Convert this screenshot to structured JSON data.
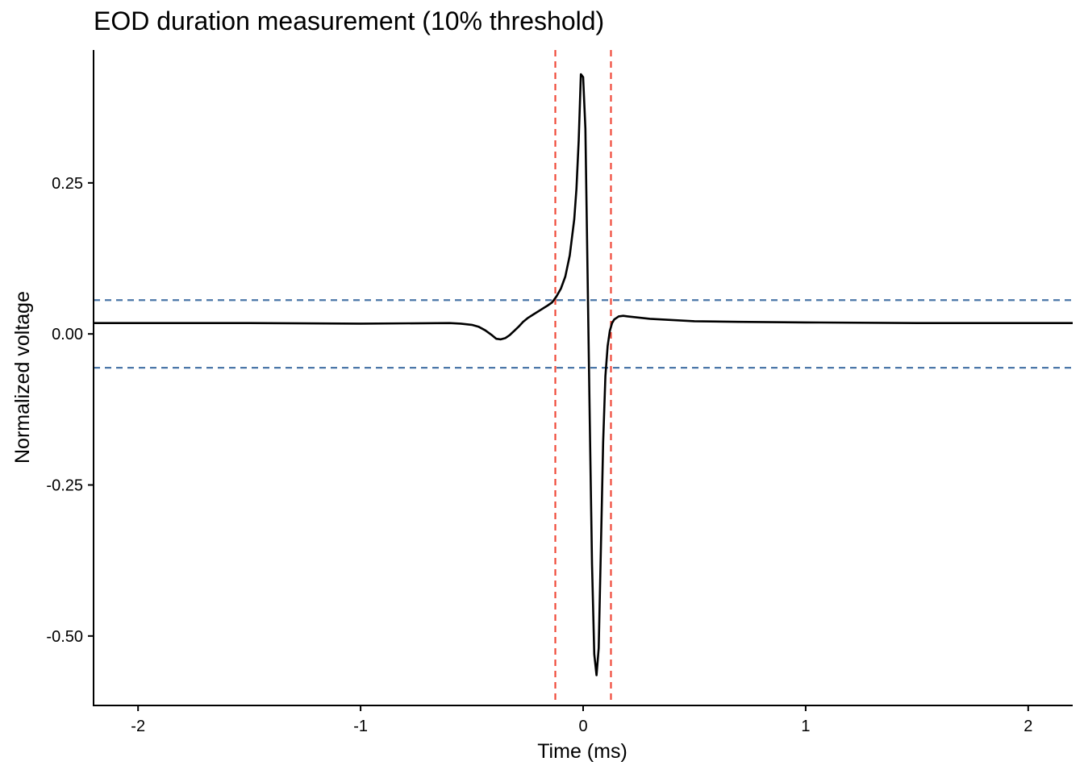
{
  "chart_data": {
    "type": "line",
    "title": "EOD duration measurement (10% threshold)",
    "xlabel": "Time (ms)",
    "ylabel": "Normalized voltage",
    "xlim": [
      -2.2,
      2.2
    ],
    "ylim": [
      -0.615,
      0.47
    ],
    "x_ticks": [
      -2,
      -1,
      0,
      1,
      2
    ],
    "x_tick_labels": [
      "-2",
      "-1",
      "0",
      "1",
      "2"
    ],
    "y_ticks": [
      0.25,
      0.0,
      -0.25,
      -0.5
    ],
    "y_tick_labels": [
      "0.25",
      "0.00",
      "-0.25",
      "-0.50"
    ],
    "grid": false,
    "legend": "none",
    "series": [
      {
        "color": "#000000",
        "x": [
          -2.2,
          -1.5,
          -1.0,
          -0.6,
          -0.55,
          -0.5,
          -0.47,
          -0.44,
          -0.41,
          -0.39,
          -0.37,
          -0.35,
          -0.33,
          -0.31,
          -0.29,
          -0.27,
          -0.25,
          -0.22,
          -0.19,
          -0.16,
          -0.14,
          -0.12,
          -0.1,
          -0.08,
          -0.06,
          -0.04,
          -0.03,
          -0.02,
          -0.01,
          0.0,
          0.01,
          0.02,
          0.03,
          0.04,
          0.05,
          0.06,
          0.07,
          0.08,
          0.09,
          0.1,
          0.11,
          0.12,
          0.13,
          0.14,
          0.16,
          0.18,
          0.2,
          0.25,
          0.3,
          0.4,
          0.5,
          0.7,
          1.0,
          1.5,
          2.0,
          2.2
        ],
        "y": [
          0.018,
          0.018,
          0.017,
          0.018,
          0.017,
          0.015,
          0.012,
          0.006,
          -0.002,
          -0.008,
          -0.009,
          -0.007,
          -0.002,
          0.005,
          0.012,
          0.02,
          0.026,
          0.033,
          0.04,
          0.047,
          0.052,
          0.062,
          0.075,
          0.095,
          0.13,
          0.19,
          0.24,
          0.32,
          0.43,
          0.425,
          0.34,
          0.1,
          -0.15,
          -0.38,
          -0.53,
          -0.565,
          -0.52,
          -0.35,
          -0.18,
          -0.07,
          -0.02,
          0.005,
          0.018,
          0.024,
          0.029,
          0.03,
          0.029,
          0.027,
          0.025,
          0.023,
          0.021,
          0.02,
          0.019,
          0.018,
          0.018,
          0.018
        ]
      }
    ],
    "reference_lines": [
      {
        "orientation": "vertical",
        "value": -0.125,
        "style": "dashed",
        "color": "#f04a3a"
      },
      {
        "orientation": "vertical",
        "value": 0.125,
        "style": "dashed",
        "color": "#f04a3a"
      },
      {
        "orientation": "horizontal",
        "value": 0.056,
        "style": "dashed",
        "color": "#4a76a8"
      },
      {
        "orientation": "horizontal",
        "value": -0.056,
        "style": "dashed",
        "color": "#4a76a8"
      }
    ]
  }
}
